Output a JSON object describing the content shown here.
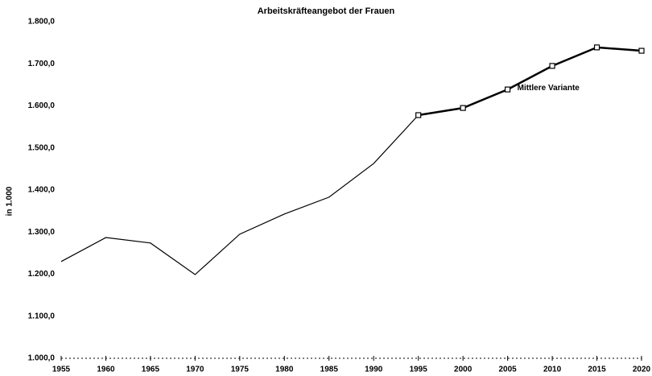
{
  "chart_data": {
    "type": "line",
    "title": "Arbeitskräfteangebot der Frauen",
    "y_label": "in 1.000",
    "xlim": [
      1955,
      2020
    ],
    "xticks": [
      1955,
      1960,
      1965,
      1970,
      1975,
      1980,
      1985,
      1990,
      1995,
      2000,
      2005,
      2010,
      2015,
      2020
    ],
    "ylim": [
      1000,
      1800
    ],
    "yticks": [
      {
        "value": 1000,
        "label": "1.000,0"
      },
      {
        "value": 1100,
        "label": "1.100,0"
      },
      {
        "value": 1200,
        "label": "1.200,0"
      },
      {
        "value": 1300,
        "label": "1.300,0"
      },
      {
        "value": 1400,
        "label": "1.400,0"
      },
      {
        "value": 1500,
        "label": "1.500,0"
      },
      {
        "value": 1600,
        "label": "1.600,0"
      },
      {
        "value": 1700,
        "label": "1.700,0"
      },
      {
        "value": 1800,
        "label": "1.800,0"
      }
    ],
    "grid": false,
    "series": [
      {
        "color": "#000000",
        "x": [
          1955,
          1960,
          1965,
          1970,
          1975,
          1980,
          1985,
          1990,
          1995
        ],
        "values": [
          1230,
          1287,
          1274,
          1199,
          1295,
          1343,
          1383,
          1463,
          1578
        ]
      },
      {
        "name": "Mittlere Variante",
        "color": "#000000",
        "markers": true,
        "x": [
          1995,
          2000,
          2005,
          2010,
          2015,
          2020
        ],
        "values": [
          1578,
          1595,
          1639,
          1695,
          1739,
          1731
        ]
      }
    ]
  }
}
